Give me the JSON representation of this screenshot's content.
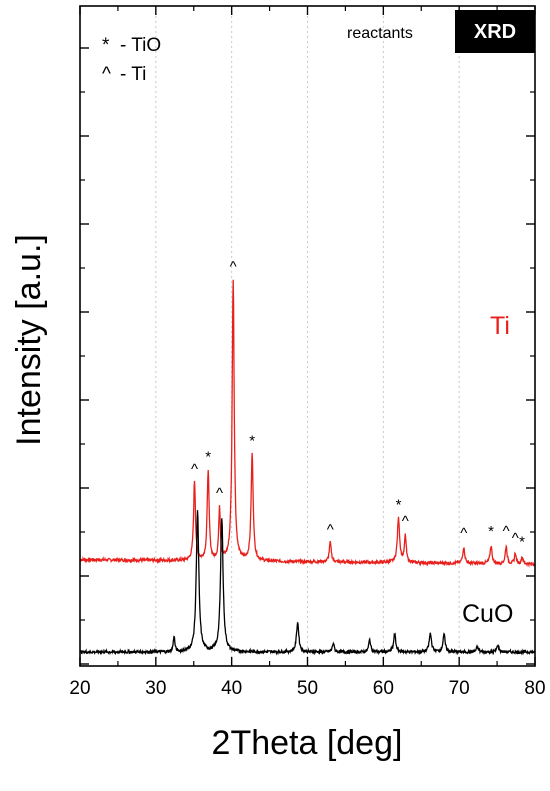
{
  "chart_data": {
    "type": "line",
    "xlabel": "2Theta [deg]",
    "ylabel": "Intensity [a.u.]",
    "xlim": [
      20,
      80
    ],
    "xticks": [
      20,
      30,
      40,
      50,
      60,
      70,
      80
    ],
    "y_ticks_labeled": false,
    "grid": "vertical dotted at x ticks",
    "corner_label": "reactants",
    "badge": "XRD",
    "legend": [
      {
        "symbol": "*",
        "text": "- TiO"
      },
      {
        "symbol": "^",
        "text": "- Ti"
      }
    ],
    "series": [
      {
        "name": "Ti",
        "color": "#e8201c",
        "baseline": 1.0,
        "peaks": [
          {
            "x": 35.1,
            "h": 0.9,
            "w": 0.15
          },
          {
            "x": 36.9,
            "h": 1.03,
            "w": 0.15
          },
          {
            "x": 38.4,
            "h": 0.6,
            "w": 0.13
          },
          {
            "x": 40.2,
            "h": 3.2,
            "w": 0.16
          },
          {
            "x": 42.7,
            "h": 1.22,
            "w": 0.16
          },
          {
            "x": 53.0,
            "h": 0.22,
            "w": 0.16
          },
          {
            "x": 62.0,
            "h": 0.5,
            "w": 0.18
          },
          {
            "x": 62.9,
            "h": 0.3,
            "w": 0.14
          },
          {
            "x": 70.6,
            "h": 0.18,
            "w": 0.16
          },
          {
            "x": 74.2,
            "h": 0.2,
            "w": 0.16
          },
          {
            "x": 76.2,
            "h": 0.2,
            "w": 0.14
          },
          {
            "x": 77.4,
            "h": 0.12,
            "w": 0.13
          },
          {
            "x": 78.3,
            "h": 0.08,
            "w": 0.12
          }
        ],
        "annotations": [
          {
            "x": 35.1,
            "mark": "^"
          },
          {
            "x": 36.9,
            "mark": "*"
          },
          {
            "x": 38.4,
            "mark": "^"
          },
          {
            "x": 40.2,
            "mark": "^"
          },
          {
            "x": 42.7,
            "mark": "*"
          },
          {
            "x": 53.0,
            "mark": "^"
          },
          {
            "x": 62.0,
            "mark": "*"
          },
          {
            "x": 62.9,
            "mark": "^"
          },
          {
            "x": 70.6,
            "mark": "^"
          },
          {
            "x": 74.2,
            "mark": "*"
          },
          {
            "x": 76.2,
            "mark": "^"
          },
          {
            "x": 77.4,
            "mark": "^"
          },
          {
            "x": 78.3,
            "mark": "*"
          }
        ]
      },
      {
        "name": "CuO",
        "color": "#000000",
        "baseline": 0.0,
        "peaks": [
          {
            "x": 32.4,
            "h": 0.18,
            "w": 0.12
          },
          {
            "x": 35.5,
            "h": 1.6,
            "w": 0.2
          },
          {
            "x": 38.7,
            "h": 1.53,
            "w": 0.2
          },
          {
            "x": 48.7,
            "h": 0.34,
            "w": 0.18
          },
          {
            "x": 53.4,
            "h": 0.1,
            "w": 0.15
          },
          {
            "x": 58.2,
            "h": 0.14,
            "w": 0.15
          },
          {
            "x": 61.5,
            "h": 0.2,
            "w": 0.17
          },
          {
            "x": 66.2,
            "h": 0.21,
            "w": 0.18
          },
          {
            "x": 68.0,
            "h": 0.2,
            "w": 0.17
          },
          {
            "x": 72.4,
            "h": 0.06,
            "w": 0.15
          },
          {
            "x": 75.1,
            "h": 0.08,
            "w": 0.15
          }
        ]
      }
    ]
  }
}
